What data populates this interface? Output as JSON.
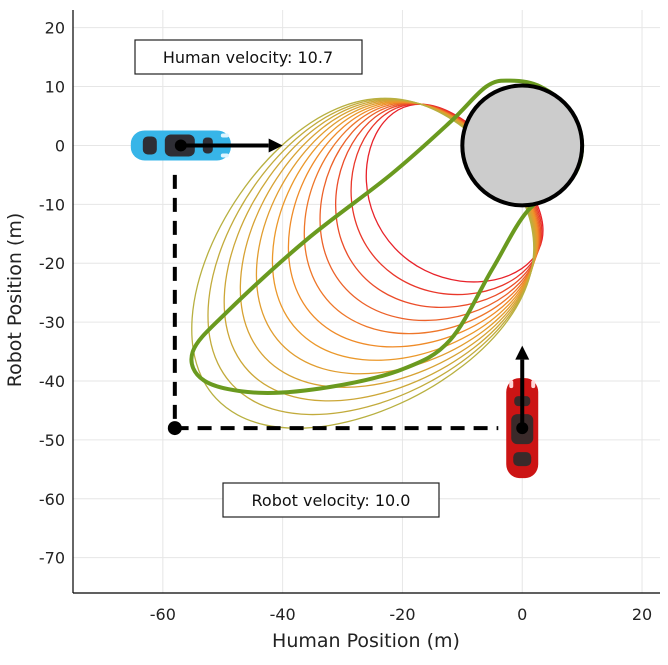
{
  "chart_data": {
    "type": "line",
    "xlabel": "Human Position (m)",
    "ylabel": "Robot Position (m)",
    "xlim": [
      -75,
      23
    ],
    "ylim": [
      -76,
      23
    ],
    "xticks": [
      -60,
      -40,
      -20,
      0,
      20
    ],
    "yticks": [
      20,
      10,
      0,
      -10,
      -20,
      -30,
      -40,
      -50,
      -60,
      -70
    ],
    "grid": true,
    "annotations": {
      "human_velocity": "Human velocity: 10.7",
      "robot_velocity": "Robot velocity: 10.0"
    },
    "collision_zone": {
      "center": [
        0,
        0
      ],
      "radius": 10,
      "fill": "#cccccc",
      "stroke": "#000000"
    },
    "outer_boundary": {
      "color": "#6a9a1f",
      "points": [
        [
          -6,
          10
        ],
        [
          -12,
          4
        ],
        [
          -22,
          -5
        ],
        [
          -36,
          -16
        ],
        [
          -49,
          -28
        ],
        [
          -55,
          -35
        ],
        [
          -53,
          -40
        ],
        [
          -44,
          -42
        ],
        [
          -32,
          -41
        ],
        [
          -20,
          -38
        ],
        [
          -12,
          -33
        ],
        [
          -5,
          -21
        ],
        [
          1,
          -11
        ],
        [
          8,
          -6
        ],
        [
          10,
          0
        ],
        [
          8,
          6
        ],
        [
          3,
          10
        ],
        [
          -2,
          11
        ],
        [
          -6,
          10
        ]
      ]
    },
    "contours": {
      "count": 12,
      "inner": {
        "cx": -10,
        "cy": -7,
        "rx": 12,
        "ry": 17,
        "color": "#e8222a"
      },
      "outer": {
        "cx": -22,
        "cy": -16,
        "rx": 31,
        "ry": 24,
        "color": "#b8b040"
      }
    },
    "human_car": {
      "position": [
        -57,
        0
      ],
      "color": "#37b5e8",
      "arrow": {
        "dx": 17,
        "dy": 0
      }
    },
    "robot_car": {
      "position": [
        0,
        -48
      ],
      "color": "#cc1414",
      "arrow": {
        "dx": 0,
        "dy": 14
      }
    },
    "path": {
      "points": [
        [
          -58,
          -5
        ],
        [
          -58,
          -48
        ],
        [
          -4,
          -48
        ]
      ],
      "corner": [
        -58,
        -48
      ]
    }
  }
}
